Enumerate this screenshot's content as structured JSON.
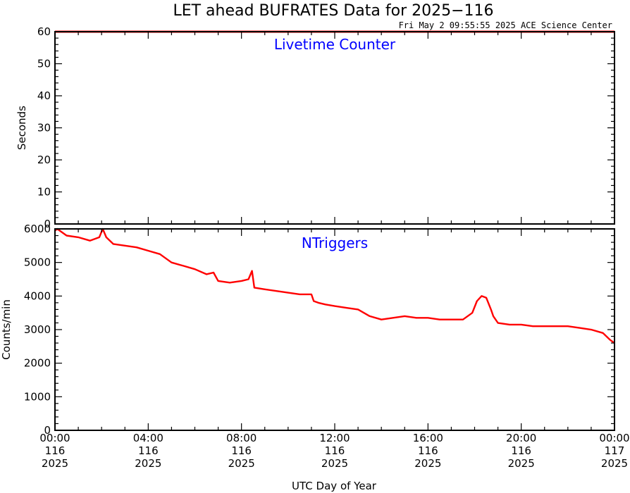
{
  "header": {
    "title": "LET ahead BUFRATES Data for 2025−116",
    "timestamp": "Fri May  2 09:55:55 2025 ACE Science Center"
  },
  "colors": {
    "series": "#ff0000",
    "panel_title": "#0000ff",
    "axes": "#000000"
  },
  "x_axis": {
    "label": "UTC Day of Year",
    "ticks": [
      {
        "hour": 0,
        "time": "00:00",
        "doy": "116",
        "year": "2025"
      },
      {
        "hour": 4,
        "time": "04:00",
        "doy": "116",
        "year": "2025"
      },
      {
        "hour": 8,
        "time": "08:00",
        "doy": "116",
        "year": "2025"
      },
      {
        "hour": 12,
        "time": "12:00",
        "doy": "116",
        "year": "2025"
      },
      {
        "hour": 16,
        "time": "16:00",
        "doy": "116",
        "year": "2025"
      },
      {
        "hour": 20,
        "time": "20:00",
        "doy": "116",
        "year": "2025"
      },
      {
        "hour": 24,
        "time": "00:00",
        "doy": "117",
        "year": "2025"
      }
    ]
  },
  "chart_data": [
    {
      "type": "line",
      "title": "Livetime Counter",
      "ylabel": "Seconds",
      "xlim": [
        0,
        24
      ],
      "ylim": [
        0,
        60
      ],
      "yticks": [
        0,
        10,
        20,
        30,
        40,
        50,
        60
      ],
      "series": [
        {
          "x": [
            0,
            24
          ],
          "y": [
            60,
            60
          ]
        }
      ]
    },
    {
      "type": "line",
      "title": "NTriggers",
      "ylabel": "Counts/min",
      "xlim": [
        0,
        24
      ],
      "ylim": [
        0,
        6000
      ],
      "yticks": [
        0,
        1000,
        2000,
        3000,
        4000,
        5000,
        6000
      ],
      "series": [
        {
          "x": [
            0,
            0.1,
            0.5,
            1,
            1.5,
            1.9,
            2.05,
            2.2,
            2.5,
            3,
            3.5,
            4,
            4.5,
            5,
            5.5,
            6,
            6.5,
            6.8,
            7,
            7.5,
            8,
            8.3,
            8.45,
            8.55,
            9,
            9.5,
            10,
            10.5,
            11,
            11.1,
            11.3,
            11.6,
            12,
            12.5,
            13,
            13.5,
            14,
            14.5,
            15,
            15.5,
            16,
            16.5,
            17,
            17.5,
            17.9,
            18.1,
            18.3,
            18.5,
            18.7,
            18.8,
            19,
            19.5,
            20,
            20.5,
            21,
            21.5,
            22,
            22.5,
            23,
            23.5,
            23.8,
            24
          ],
          "y": [
            5950,
            6000,
            5800,
            5750,
            5650,
            5750,
            6000,
            5750,
            5550,
            5500,
            5450,
            5350,
            5250,
            5000,
            4900,
            4800,
            4650,
            4700,
            4450,
            4400,
            4450,
            4500,
            4750,
            4250,
            4200,
            4150,
            4100,
            4050,
            4050,
            3850,
            3800,
            3750,
            3700,
            3650,
            3600,
            3400,
            3300,
            3350,
            3400,
            3350,
            3350,
            3300,
            3300,
            3300,
            3500,
            3850,
            4000,
            3950,
            3600,
            3400,
            3200,
            3150,
            3150,
            3100,
            3100,
            3100,
            3100,
            3050,
            3000,
            2900,
            2700,
            2600
          ]
        }
      ]
    }
  ]
}
